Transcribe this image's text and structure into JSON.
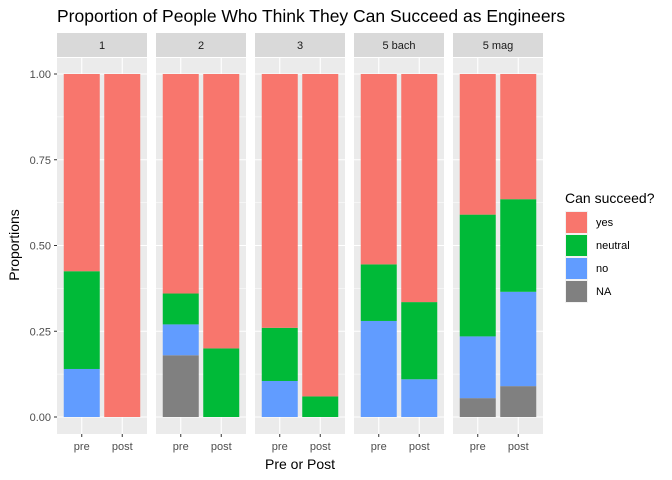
{
  "chart_data": {
    "type": "bar",
    "stacked": true,
    "facet_wrap": true,
    "title": "Proportion of People Who Think They Can Succeed as Engineers",
    "xlabel": "Pre or Post",
    "ylabel": "Proportions",
    "ylim": [
      0,
      1
    ],
    "y_ticks": [
      "0.00",
      "0.25",
      "0.50",
      "0.75",
      "1.00"
    ],
    "legend": {
      "title": "Can succeed?",
      "position": "right",
      "items": [
        {
          "label": "yes",
          "color": "#F8766D"
        },
        {
          "label": "neutral",
          "color": "#00BA38"
        },
        {
          "label": "no",
          "color": "#619CFF"
        },
        {
          "label": "NA",
          "color": "#808080"
        }
      ]
    },
    "stack_order_bottom_to_top": [
      "NA",
      "no",
      "neutral",
      "yes"
    ],
    "categories": [
      "pre",
      "post"
    ],
    "facets": [
      {
        "label": "1",
        "bars": [
          {
            "x": "pre",
            "values": {
              "NA": 0.0,
              "no": 0.14,
              "neutral": 0.285,
              "yes": 0.575
            }
          },
          {
            "x": "post",
            "values": {
              "NA": 0.0,
              "no": 0.0,
              "neutral": 0.0,
              "yes": 1.0
            }
          }
        ]
      },
      {
        "label": "2",
        "bars": [
          {
            "x": "pre",
            "values": {
              "NA": 0.18,
              "no": 0.09,
              "neutral": 0.09,
              "yes": 0.64
            }
          },
          {
            "x": "post",
            "values": {
              "NA": 0.0,
              "no": 0.0,
              "neutral": 0.2,
              "yes": 0.8
            }
          }
        ]
      },
      {
        "label": "3",
        "bars": [
          {
            "x": "pre",
            "values": {
              "NA": 0.0,
              "no": 0.105,
              "neutral": 0.155,
              "yes": 0.74
            }
          },
          {
            "x": "post",
            "values": {
              "NA": 0.0,
              "no": 0.0,
              "neutral": 0.06,
              "yes": 0.94
            }
          }
        ]
      },
      {
        "label": "5 bach",
        "bars": [
          {
            "x": "pre",
            "values": {
              "NA": 0.0,
              "no": 0.28,
              "neutral": 0.165,
              "yes": 0.555
            }
          },
          {
            "x": "post",
            "values": {
              "NA": 0.0,
              "no": 0.11,
              "neutral": 0.225,
              "yes": 0.665
            }
          }
        ]
      },
      {
        "label": "5 mag",
        "bars": [
          {
            "x": "pre",
            "values": {
              "NA": 0.055,
              "no": 0.18,
              "neutral": 0.355,
              "yes": 0.41
            }
          },
          {
            "x": "post",
            "values": {
              "NA": 0.09,
              "no": 0.275,
              "neutral": 0.27,
              "yes": 0.365
            }
          }
        ]
      }
    ]
  }
}
